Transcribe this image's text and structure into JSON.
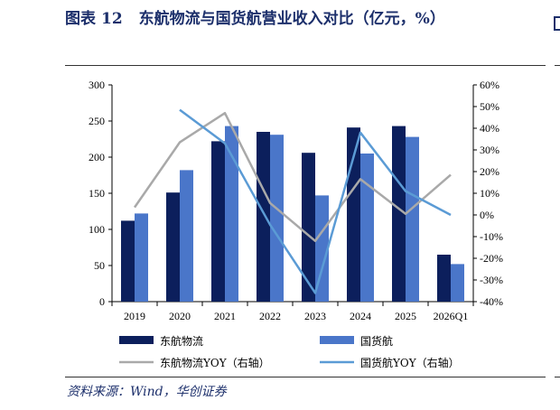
{
  "figure": {
    "title_label": "图表",
    "title_number": "12",
    "title_text": "东航物流与国货航营业收入对比（亿元，%）",
    "source": "资料来源：Wind，华创证券"
  },
  "chart_data": {
    "type": "bar",
    "categories": [
      "2019",
      "2020",
      "2021",
      "2022",
      "2023",
      "2024",
      "2025",
      "2026Q1"
    ],
    "series": [
      {
        "name": "东航物流",
        "kind": "bar",
        "axis": "left",
        "color": "#0c1f5c",
        "values": [
          112,
          151,
          222,
          235,
          206,
          241,
          243,
          65
        ]
      },
      {
        "name": "国货航",
        "kind": "bar",
        "axis": "left",
        "color": "#4a76c9",
        "values": [
          122,
          182,
          243,
          231,
          147,
          205,
          228,
          52
        ]
      },
      {
        "name": "东航物流YOY（右轴）",
        "kind": "line",
        "axis": "right",
        "color": "#a9a9a9",
        "values": [
          3.5,
          33.5,
          47,
          5.5,
          -12,
          16.5,
          0.5,
          18.5
        ]
      },
      {
        "name": "国货航YOY（右轴）",
        "kind": "line",
        "axis": "right",
        "color": "#5b9bd5",
        "values": [
          null,
          48.5,
          33,
          -4.5,
          -36,
          38,
          11,
          0
        ]
      }
    ],
    "ylim_left": [
      0,
      300
    ],
    "left_ticks": [
      "0",
      "50",
      "100",
      "150",
      "200",
      "250",
      "300"
    ],
    "ylim_right": [
      -40,
      60
    ],
    "right_ticks": [
      "-40%",
      "-30%",
      "-20%",
      "-10%",
      "0%",
      "10%",
      "20%",
      "30%",
      "40%",
      "50%",
      "60%"
    ],
    "grid": false,
    "legend_position": "bottom"
  }
}
